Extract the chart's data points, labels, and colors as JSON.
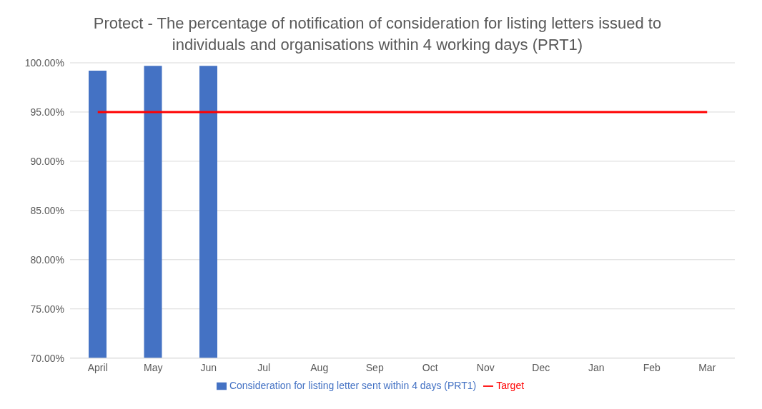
{
  "chart_data": {
    "type": "bar",
    "title": "Protect - The percentage of notification of consideration for listing letters issued to individuals and organisations within 4 working days (PRT1)",
    "categories": [
      "April",
      "May",
      "Jun",
      "Jul",
      "Aug",
      "Sep",
      "Oct",
      "Nov",
      "Dec",
      "Jan",
      "Feb",
      "Mar"
    ],
    "series": [
      {
        "name": "Consideration for listing letter sent within 4 days (PRT1)",
        "color": "#4472c4",
        "values": [
          99.2,
          99.7,
          99.7,
          null,
          null,
          null,
          null,
          null,
          null,
          null,
          null,
          null
        ]
      },
      {
        "name": "Target",
        "type": "line",
        "color": "#ff0000",
        "values": [
          95,
          95,
          95,
          95,
          95,
          95,
          95,
          95,
          95,
          95,
          95,
          95
        ]
      }
    ],
    "ylim": [
      70,
      100
    ],
    "yticks": [
      {
        "value": 70,
        "label": "70.00%"
      },
      {
        "value": 75,
        "label": "75.00%"
      },
      {
        "value": 80,
        "label": "80.00%"
      },
      {
        "value": 85,
        "label": "85.00%"
      },
      {
        "value": 90,
        "label": "90.00%"
      },
      {
        "value": 95,
        "label": "95.00%"
      },
      {
        "value": 100,
        "label": "100.00%"
      }
    ],
    "grid": "y",
    "legend": "bottom"
  }
}
